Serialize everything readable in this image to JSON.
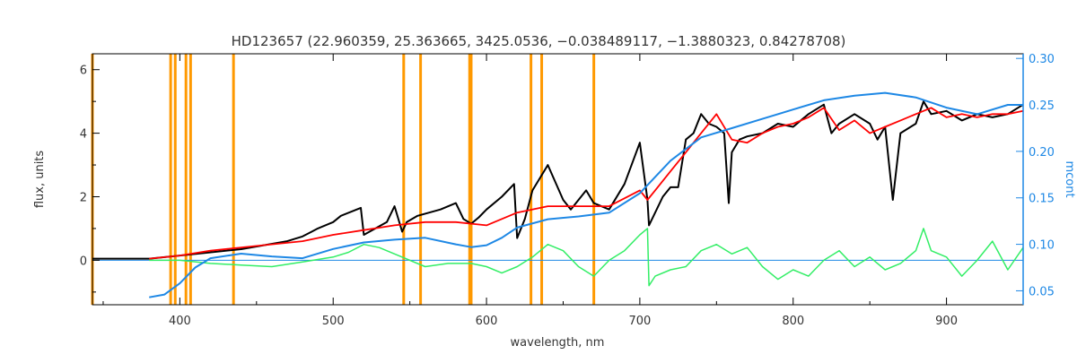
{
  "chart_data": {
    "type": "line",
    "title": "HD123657    (22.960359, 25.363665, 3425.0536, −0.038489117, −1.3880323, 0.84278708)",
    "xlabel": "wavelength, nm",
    "ylabel": "flux, units",
    "y2label": "mcont",
    "xlim": [
      343,
      950
    ],
    "ylim": [
      -1.4,
      6.5
    ],
    "y2lim": [
      0.035,
      0.305
    ],
    "grid": false,
    "legend": "none",
    "x_ticks": [
      400,
      500,
      600,
      700,
      800,
      900
    ],
    "y_ticks": [
      0,
      2,
      4,
      6
    ],
    "y2_ticks": [
      0.05,
      0.1,
      0.15,
      0.2,
      0.25,
      0.3
    ],
    "y2_tick_labels": [
      "0.05",
      "0.10",
      "0.15",
      "0.20",
      "0.25",
      "0.30"
    ],
    "colors": {
      "observed": "#000000",
      "model": "#ff0000",
      "residual": "#33ee66",
      "continuum": "#1e88e5",
      "lines": "#ff9900",
      "zero_line": "#1e88e5",
      "right_axis": "#1e88e5",
      "text": "#333333"
    },
    "vertical_lines": [
      343,
      394,
      397,
      404,
      407,
      435,
      546,
      557,
      589,
      590,
      629,
      636,
      670
    ],
    "zero_line": {
      "x": [
        343,
        950
      ],
      "y": 0
    },
    "series": [
      {
        "key": "observed",
        "x": [
          343,
          380,
          400,
          440,
          470,
          480,
          486,
          490,
          500,
          505,
          518,
          520,
          535,
          540,
          545,
          548,
          555,
          570,
          580,
          585,
          590,
          595,
          600,
          610,
          618,
          620,
          625,
          630,
          640,
          650,
          655,
          665,
          670,
          680,
          690,
          700,
          705,
          706,
          710,
          715,
          720,
          725,
          730,
          735,
          740,
          745,
          750,
          755,
          758,
          760,
          765,
          770,
          780,
          790,
          800,
          810,
          820,
          825,
          830,
          840,
          850,
          855,
          860,
          865,
          870,
          880,
          885,
          890,
          900,
          910,
          920,
          930,
          940,
          950
        ],
        "y": [
          0.05,
          0.05,
          0.15,
          0.35,
          0.6,
          0.75,
          0.9,
          1.0,
          1.2,
          1.4,
          1.65,
          0.8,
          1.2,
          1.7,
          0.9,
          1.2,
          1.4,
          1.6,
          1.8,
          1.3,
          1.15,
          1.35,
          1.6,
          2.0,
          2.4,
          0.7,
          1.3,
          2.2,
          3.0,
          1.9,
          1.6,
          2.2,
          1.8,
          1.6,
          2.4,
          3.7,
          1.9,
          1.1,
          1.5,
          2.0,
          2.3,
          2.3,
          3.8,
          4.0,
          4.6,
          4.3,
          4.2,
          4.0,
          1.8,
          3.4,
          3.8,
          3.9,
          4.0,
          4.3,
          4.2,
          4.6,
          4.9,
          4.0,
          4.3,
          4.6,
          4.3,
          3.8,
          4.2,
          1.9,
          4.0,
          4.3,
          5.0,
          4.6,
          4.7,
          4.4,
          4.6,
          4.5,
          4.6,
          4.9
        ]
      },
      {
        "key": "model",
        "x": [
          380,
          400,
          420,
          450,
          480,
          500,
          520,
          540,
          560,
          580,
          600,
          620,
          640,
          660,
          680,
          700,
          705,
          710,
          720,
          730,
          740,
          750,
          760,
          770,
          780,
          790,
          800,
          810,
          820,
          830,
          840,
          850,
          860,
          870,
          880,
          890,
          900,
          910,
          920,
          930,
          940,
          950
        ],
        "y": [
          0.05,
          0.15,
          0.3,
          0.45,
          0.6,
          0.8,
          0.95,
          1.1,
          1.2,
          1.2,
          1.1,
          1.5,
          1.7,
          1.7,
          1.7,
          2.2,
          1.9,
          2.2,
          2.8,
          3.4,
          4.0,
          4.6,
          3.8,
          3.7,
          4.0,
          4.2,
          4.3,
          4.5,
          4.8,
          4.1,
          4.4,
          4.0,
          4.2,
          4.4,
          4.6,
          4.8,
          4.5,
          4.6,
          4.5,
          4.6,
          4.6,
          4.7
        ]
      },
      {
        "key": "residual",
        "x": [
          380,
          400,
          420,
          440,
          460,
          480,
          500,
          510,
          520,
          530,
          540,
          560,
          575,
          590,
          600,
          610,
          620,
          630,
          640,
          650,
          660,
          670,
          680,
          690,
          700,
          705,
          706,
          710,
          720,
          730,
          740,
          750,
          760,
          770,
          780,
          790,
          800,
          810,
          820,
          830,
          840,
          850,
          860,
          870,
          880,
          885,
          890,
          900,
          910,
          920,
          930,
          940,
          950
        ],
        "y": [
          0.0,
          0.0,
          -0.1,
          -0.15,
          -0.2,
          -0.05,
          0.1,
          0.25,
          0.5,
          0.4,
          0.2,
          -0.2,
          -0.1,
          -0.1,
          -0.2,
          -0.4,
          -0.2,
          0.1,
          0.5,
          0.3,
          -0.2,
          -0.5,
          0.0,
          0.3,
          0.8,
          1.0,
          -0.8,
          -0.5,
          -0.3,
          -0.2,
          0.3,
          0.5,
          0.2,
          0.4,
          -0.2,
          -0.6,
          -0.3,
          -0.5,
          0.0,
          0.3,
          -0.2,
          0.1,
          -0.3,
          -0.1,
          0.3,
          1.0,
          0.3,
          0.1,
          -0.5,
          0.0,
          0.6,
          -0.3,
          0.4
        ]
      },
      {
        "key": "continuum",
        "axis": "right",
        "x": [
          380,
          390,
          400,
          410,
          420,
          440,
          460,
          480,
          500,
          520,
          540,
          560,
          580,
          590,
          600,
          610,
          620,
          640,
          660,
          680,
          700,
          720,
          740,
          760,
          780,
          800,
          820,
          840,
          860,
          880,
          900,
          920,
          940,
          950
        ],
        "y": [
          0.043,
          0.046,
          0.058,
          0.075,
          0.085,
          0.09,
          0.087,
          0.085,
          0.095,
          0.102,
          0.105,
          0.107,
          0.1,
          0.097,
          0.099,
          0.107,
          0.118,
          0.127,
          0.13,
          0.134,
          0.155,
          0.19,
          0.215,
          0.225,
          0.235,
          0.245,
          0.255,
          0.26,
          0.263,
          0.258,
          0.247,
          0.24,
          0.25,
          0.25
        ]
      }
    ]
  }
}
